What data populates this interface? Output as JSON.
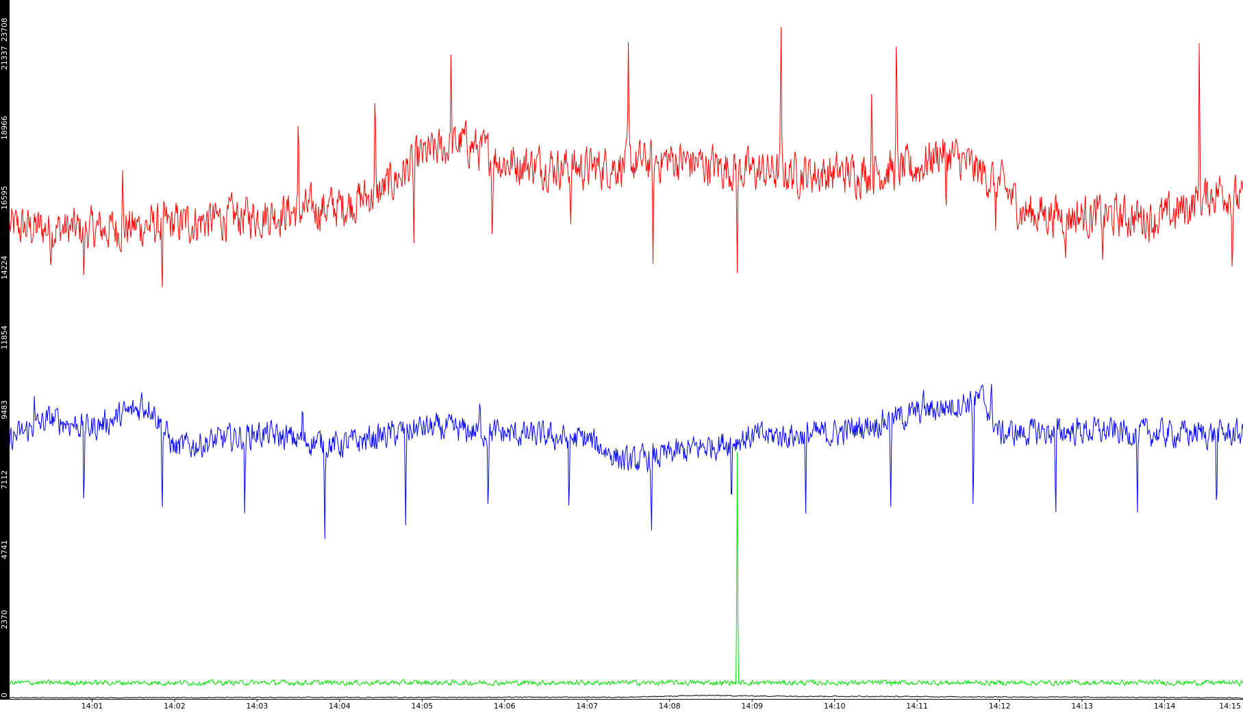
{
  "chart_data": {
    "type": "line",
    "title": "",
    "xlabel": "",
    "ylabel": "",
    "grid": false,
    "legend": "none",
    "y_ticks": [
      0,
      2370,
      4741,
      7112,
      9483,
      11854,
      14224,
      16595,
      18966,
      21337,
      23708
    ],
    "ylim": [
      0,
      23708
    ],
    "x_ticks": [
      "14:01",
      "14:02",
      "14:03",
      "14:04",
      "14:05",
      "14:06",
      "14:07",
      "14:08",
      "14:09",
      "14:10",
      "14:11",
      "14:12",
      "14:13",
      "14:14",
      "14:15"
    ],
    "xlim_minutes": [
      0.0,
      14.95
    ],
    "series": [
      {
        "color": "#ff0000",
        "base": [
          [
            0.0,
            16000
          ],
          [
            1.0,
            15900
          ],
          [
            2.0,
            16100
          ],
          [
            3.0,
            16400
          ],
          [
            4.0,
            16700
          ],
          [
            4.5,
            17200
          ],
          [
            5.0,
            18400
          ],
          [
            5.5,
            18900
          ],
          [
            6.0,
            18200
          ],
          [
            7.0,
            18000
          ],
          [
            8.0,
            18300
          ],
          [
            9.0,
            17900
          ],
          [
            10.0,
            17800
          ],
          [
            11.0,
            18000
          ],
          [
            11.3,
            18600
          ],
          [
            12.0,
            17500
          ],
          [
            12.3,
            16500
          ],
          [
            13.0,
            16400
          ],
          [
            14.0,
            16300
          ],
          [
            14.7,
            17300
          ],
          [
            14.95,
            16800
          ]
        ],
        "noise": 1100,
        "spikes": [
          [
            0.5,
            14600
          ],
          [
            0.9,
            13900
          ],
          [
            1.37,
            18000
          ],
          [
            1.85,
            13400
          ],
          [
            3.5,
            20300
          ],
          [
            4.43,
            21100
          ],
          [
            4.9,
            15400
          ],
          [
            5.35,
            22200
          ],
          [
            5.85,
            15000
          ],
          [
            6.8,
            15800
          ],
          [
            7.5,
            22300
          ],
          [
            7.8,
            14400
          ],
          [
            8.82,
            14300
          ],
          [
            9.35,
            23700
          ],
          [
            10.45,
            21000
          ],
          [
            10.75,
            23200
          ],
          [
            11.35,
            15900
          ],
          [
            11.95,
            15600
          ],
          [
            12.8,
            14800
          ],
          [
            13.25,
            14600
          ],
          [
            13.85,
            15800
          ],
          [
            14.42,
            23000
          ],
          [
            14.82,
            14000
          ]
        ]
      },
      {
        "color": "#0000ff",
        "base": [
          [
            0.0,
            8800
          ],
          [
            0.5,
            9500
          ],
          [
            1.0,
            9200
          ],
          [
            1.7,
            10000
          ],
          [
            2.0,
            8500
          ],
          [
            3.0,
            9000
          ],
          [
            4.0,
            8600
          ],
          [
            5.0,
            9200
          ],
          [
            6.0,
            9000
          ],
          [
            7.0,
            8800
          ],
          [
            7.5,
            8000
          ],
          [
            8.0,
            8300
          ],
          [
            9.0,
            8900
          ],
          [
            10.0,
            9000
          ],
          [
            11.0,
            9700
          ],
          [
            11.8,
            10200
          ],
          [
            12.0,
            9000
          ],
          [
            13.0,
            9100
          ],
          [
            14.0,
            9000
          ],
          [
            14.95,
            9000
          ]
        ],
        "noise": 700,
        "spikes": [
          [
            0.9,
            6000
          ],
          [
            1.85,
            6000
          ],
          [
            2.85,
            6000
          ],
          [
            3.82,
            5300
          ],
          [
            4.8,
            5700
          ],
          [
            5.8,
            6000
          ],
          [
            6.78,
            5800
          ],
          [
            7.78,
            5100
          ],
          [
            8.75,
            6000
          ],
          [
            9.65,
            6000
          ],
          [
            10.68,
            6300
          ],
          [
            11.68,
            5800
          ],
          [
            12.68,
            5500
          ],
          [
            13.67,
            6100
          ],
          [
            14.63,
            5700
          ],
          [
            0.3,
            10400
          ],
          [
            1.6,
            10500
          ],
          [
            3.55,
            10100
          ],
          [
            5.7,
            10200
          ],
          [
            11.08,
            10500
          ],
          [
            11.9,
            10800
          ]
        ]
      },
      {
        "color": "#00e000",
        "base": [
          [
            0.0,
            550
          ],
          [
            14.95,
            550
          ]
        ],
        "noise": 130,
        "spikes": [
          [
            8.82,
            8700
          ]
        ]
      },
      {
        "color": "#000000",
        "base": [
          [
            0.0,
            40
          ],
          [
            7.5,
            60
          ],
          [
            8.4,
            120
          ],
          [
            9.0,
            100
          ],
          [
            14.95,
            40
          ]
        ],
        "noise": 25,
        "spikes": []
      }
    ]
  }
}
